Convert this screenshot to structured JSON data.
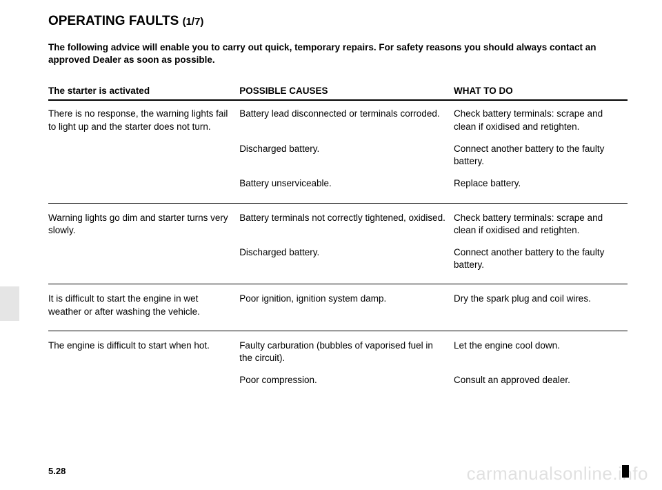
{
  "title_main": "OPERATING FAULTS",
  "title_page": "(1/7)",
  "intro": "The following advice will enable you to carry out quick, temporary repairs. For safety reasons you should always contact an approved Dealer as soon as possible.",
  "headers": {
    "col1": "The starter is activated",
    "col2": "POSSIBLE CAUSES",
    "col3": "WHAT TO DO"
  },
  "sections": [
    {
      "symptom": "There is no response, the warning lights fail to light up and the starter does not turn.",
      "rows": [
        {
          "cause": "Battery lead disconnected or terminals corroded.",
          "action": "Check battery terminals: scrape and clean if oxidised and retighten."
        },
        {
          "cause": "Discharged battery.",
          "action": "Connect another battery to the faulty battery."
        },
        {
          "cause": "Battery unserviceable.",
          "action": "Replace battery."
        }
      ]
    },
    {
      "symptom": "Warning lights go dim and starter turns very slowly.",
      "rows": [
        {
          "cause": "Battery terminals not correctly tightened, oxidised.",
          "action": "Check battery terminals: scrape and clean if oxidised and retighten."
        },
        {
          "cause": "Discharged battery.",
          "action": "Connect another battery to the faulty battery."
        }
      ]
    },
    {
      "symptom": "It is difficult to start the engine in wet weather or after washing the vehicle.",
      "rows": [
        {
          "cause": "Poor ignition, ignition system damp.",
          "action": "Dry the spark plug and coil wires."
        }
      ]
    },
    {
      "symptom": "The engine is difficult to start when hot.",
      "rows": [
        {
          "cause": "Faulty carburation (bubbles of vaporised fuel in the circuit).",
          "action": "Let the engine cool down."
        },
        {
          "cause": "Poor compression.",
          "action": "Consult an approved dealer."
        }
      ]
    }
  ],
  "page_number": "5.28",
  "watermark": "carmanualsonline.info"
}
